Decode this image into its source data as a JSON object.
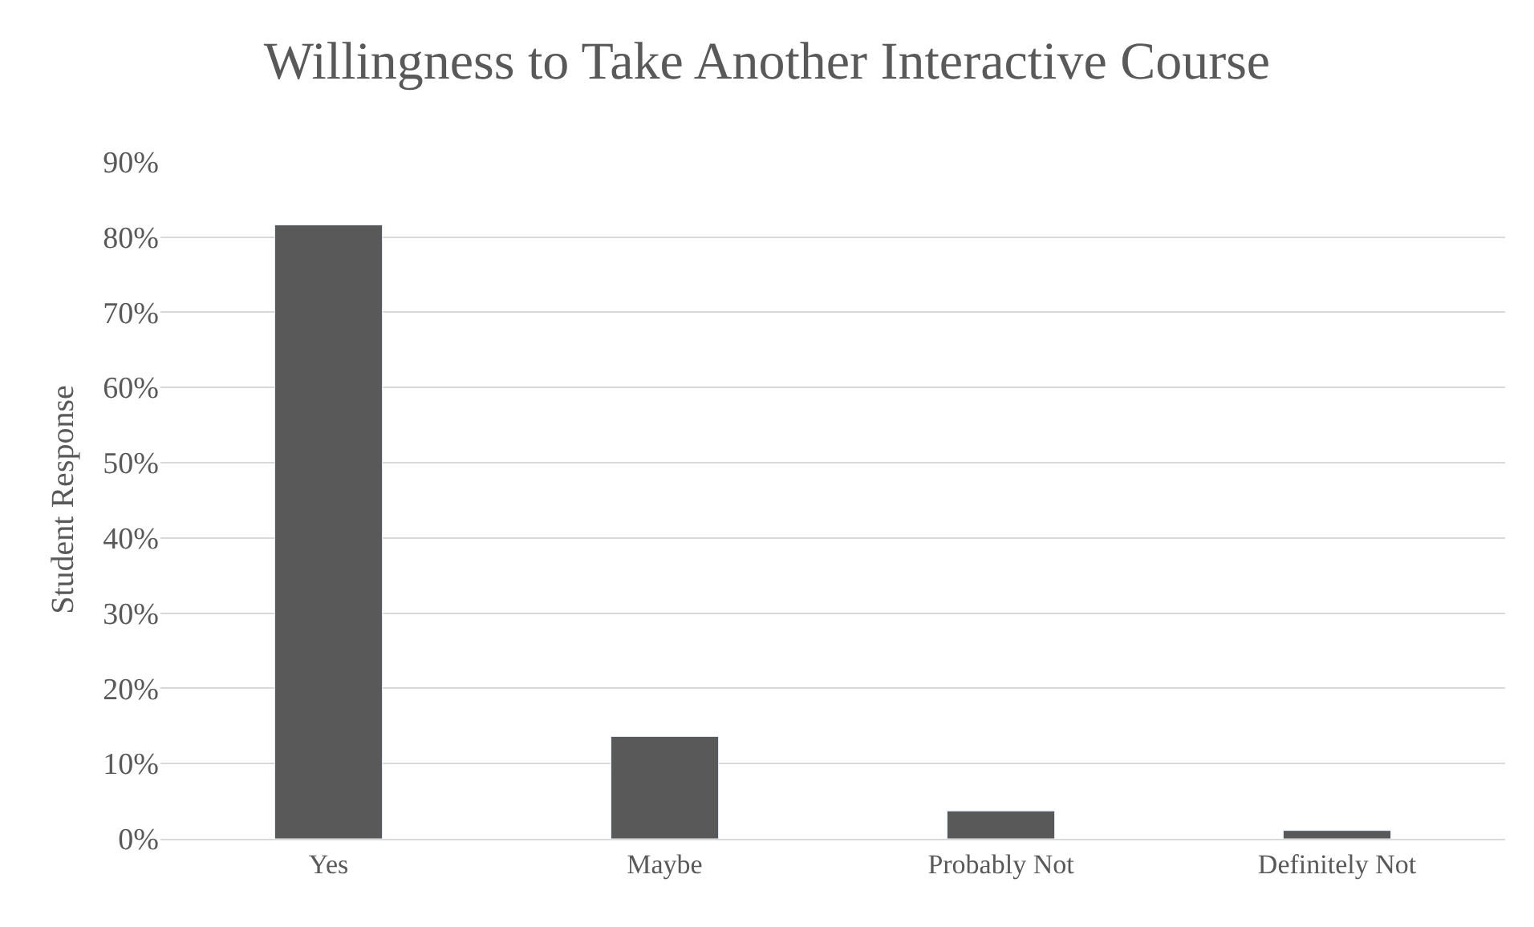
{
  "chart_data": {
    "type": "bar",
    "title": "Willingness to Take Another Interactive Course",
    "ylabel": "Student Response",
    "categories": [
      "Yes",
      "Maybe",
      "Probably Not",
      "Definitely Not"
    ],
    "values": [
      81.6,
      13.6,
      3.7,
      1.1
    ],
    "color": "#595959",
    "ylim": [
      0,
      90
    ],
    "yticks": [
      {
        "value": 0,
        "label": "0%"
      },
      {
        "value": 10,
        "label": "10%"
      },
      {
        "value": 20,
        "label": "20%"
      },
      {
        "value": 30,
        "label": "30%"
      },
      {
        "value": 40,
        "label": "40%"
      },
      {
        "value": 50,
        "label": "50%"
      },
      {
        "value": 60,
        "label": "60%"
      },
      {
        "value": 70,
        "label": "70%"
      },
      {
        "value": 80,
        "label": "80%"
      },
      {
        "value": 90,
        "label": "90%"
      }
    ],
    "grid": "y"
  }
}
